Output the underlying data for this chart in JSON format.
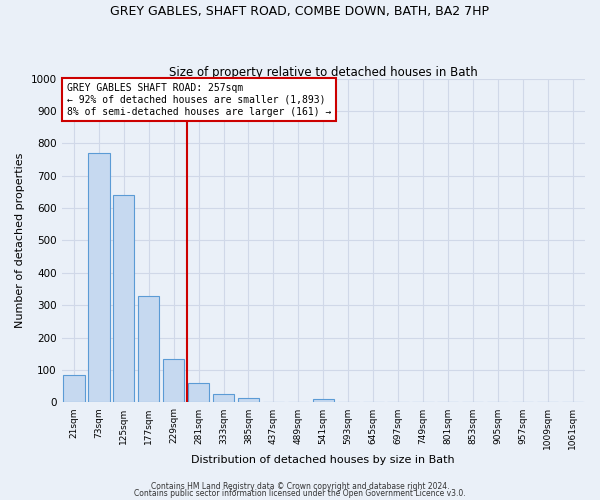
{
  "title": "GREY GABLES, SHAFT ROAD, COMBE DOWN, BATH, BA2 7HP",
  "subtitle": "Size of property relative to detached houses in Bath",
  "xlabel": "Distribution of detached houses by size in Bath",
  "ylabel": "Number of detached properties",
  "bar_labels": [
    "21sqm",
    "73sqm",
    "125sqm",
    "177sqm",
    "229sqm",
    "281sqm",
    "333sqm",
    "385sqm",
    "437sqm",
    "489sqm",
    "541sqm",
    "593sqm",
    "645sqm",
    "697sqm",
    "749sqm",
    "801sqm",
    "853sqm",
    "905sqm",
    "957sqm",
    "1009sqm",
    "1061sqm"
  ],
  "bar_values": [
    85,
    770,
    640,
    330,
    135,
    60,
    25,
    15,
    0,
    0,
    10,
    0,
    0,
    0,
    0,
    0,
    0,
    0,
    0,
    0,
    0
  ],
  "bar_color": "#c6d9f0",
  "bar_edge_color": "#5b9bd5",
  "annotation_title": "GREY GABLES SHAFT ROAD: 257sqm",
  "annotation_line1": "← 92% of detached houses are smaller (1,893)",
  "annotation_line2": "8% of semi-detached houses are larger (161) →",
  "annotation_box_color": "#ffffff",
  "annotation_box_edge_color": "#cc0000",
  "vline_color": "#cc0000",
  "vline_x": 4.538,
  "ylim": [
    0,
    1000
  ],
  "yticks": [
    0,
    100,
    200,
    300,
    400,
    500,
    600,
    700,
    800,
    900,
    1000
  ],
  "grid_color": "#d0d8e8",
  "bg_color": "#eaf0f8",
  "footnote1": "Contains HM Land Registry data © Crown copyright and database right 2024.",
  "footnote2": "Contains public sector information licensed under the Open Government Licence v3.0."
}
